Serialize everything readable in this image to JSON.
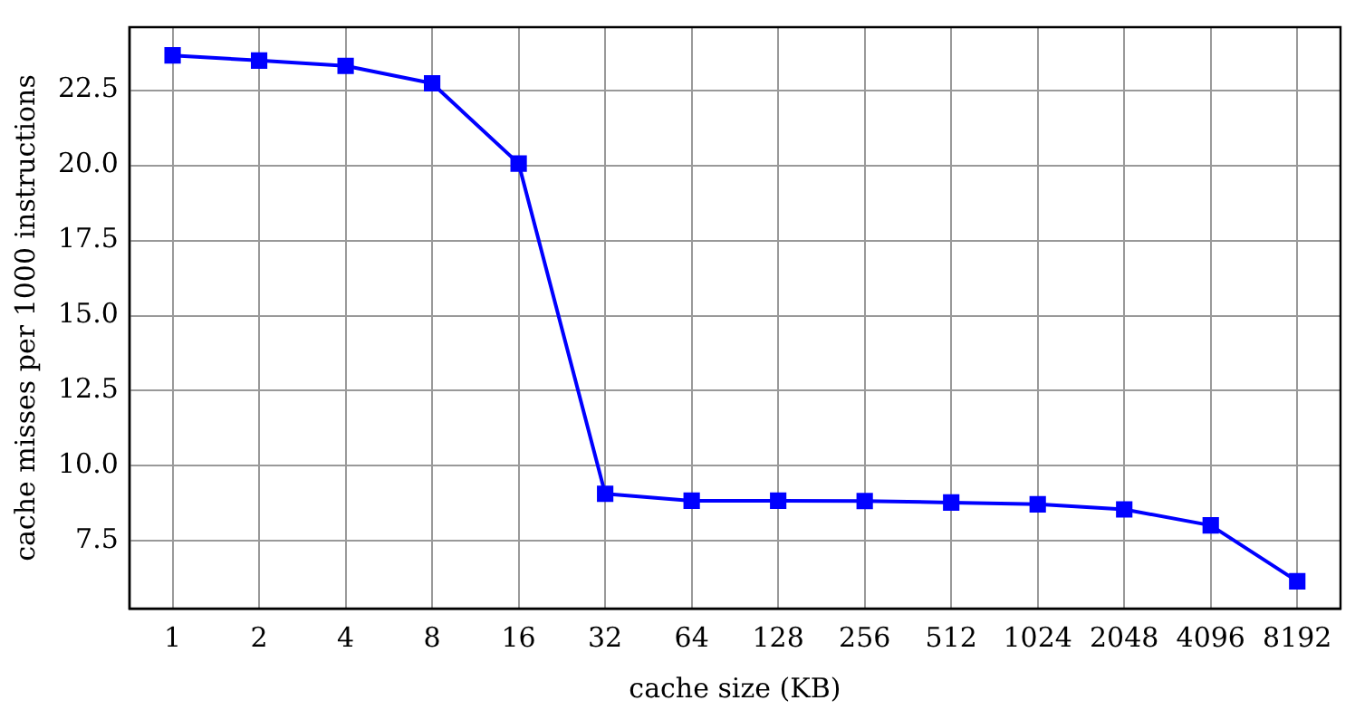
{
  "chart_data": {
    "type": "line",
    "xlabel": "cache size (KB)",
    "ylabel": "cache misses per 1000 instructions",
    "categories": [
      "1",
      "2",
      "4",
      "8",
      "16",
      "32",
      "64",
      "128",
      "256",
      "512",
      "1024",
      "2048",
      "4096",
      "8192"
    ],
    "series": [
      {
        "color": "#0000ff",
        "values": [
          23.66,
          23.49,
          23.31,
          22.73,
          20.06,
          9.07,
          8.84,
          8.84,
          8.83,
          8.78,
          8.72,
          8.55,
          8.02,
          6.16
        ]
      }
    ],
    "ylim": [
      5.25,
      24.6
    ],
    "yticks": [
      {
        "value": 7.5,
        "label": "7.5"
      },
      {
        "value": 10,
        "label": "10.0"
      },
      {
        "value": 12.5,
        "label": "12.5"
      },
      {
        "value": 15,
        "label": "15.0"
      },
      {
        "value": 17.5,
        "label": "17.5"
      },
      {
        "value": 20,
        "label": "20.0"
      },
      {
        "value": 22.5,
        "label": "22.5"
      }
    ],
    "grid": true,
    "legend": false,
    "marker": "square",
    "line_style": "solid"
  }
}
